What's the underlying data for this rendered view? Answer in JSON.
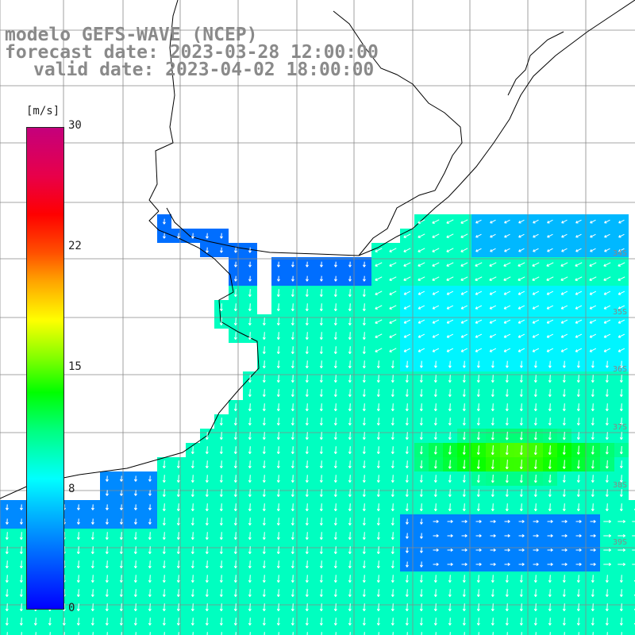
{
  "title": {
    "model": "modelo GEFS-WAVE (NCEP)",
    "forecast": "forecast date: 2023-03-28 12:00:00",
    "valid": "valid date: 2023-04-02 18:00:00"
  },
  "colorbar": {
    "unit": "[m/s]",
    "min": 0,
    "max": 30,
    "ticks": [
      "30",
      "22",
      "15",
      "8",
      "0"
    ],
    "colors": [
      "#0000ff",
      "#00b8ff",
      "#00ffff",
      "#00ff00",
      "#ffff00",
      "#ff0000",
      "#c4007c"
    ]
  },
  "latitude_labels": [
    "34S",
    "35S",
    "36S",
    "37S",
    "38S",
    "39S"
  ],
  "map": {
    "land_color": "#ffffff",
    "grid_color": "#888888",
    "coast_color": "#000000",
    "arrow_color": "#ffffff"
  }
}
